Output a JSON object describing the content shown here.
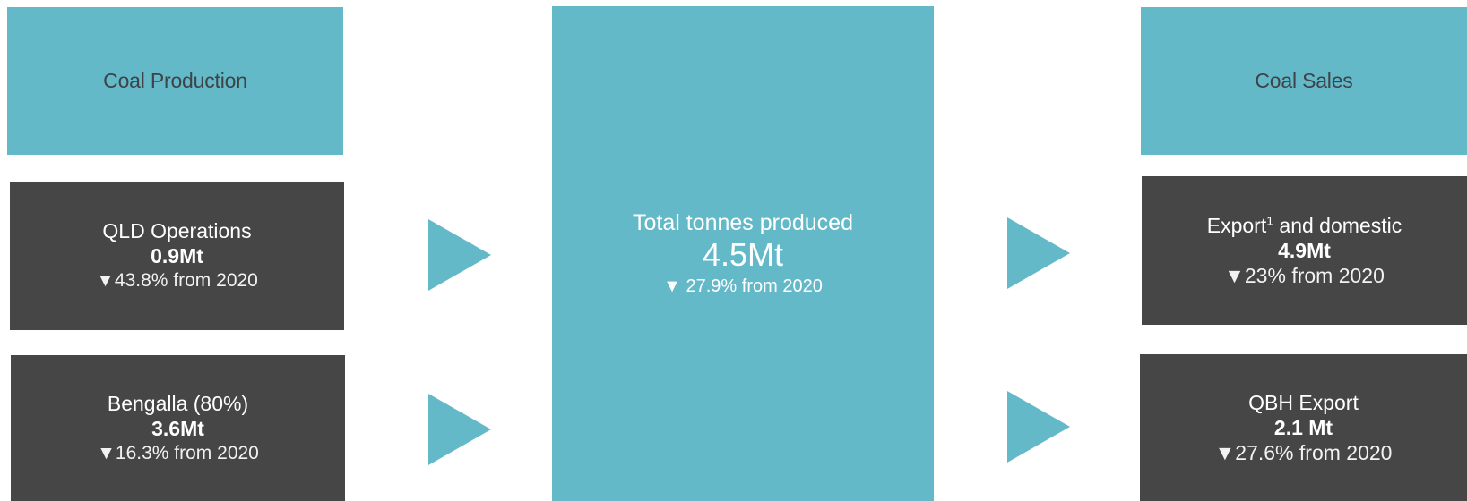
{
  "production": {
    "header": "Coal Production",
    "items": [
      {
        "name": "QLD Operations",
        "value": "0.9Mt",
        "change": "▼43.8% from 2020"
      },
      {
        "name": "Bengalla (80%)",
        "value": "3.6Mt",
        "change": "▼16.3% from 2020"
      }
    ]
  },
  "total": {
    "title": "Total tonnes produced",
    "value": "4.5Mt",
    "change": "▼ 27.9% from 2020"
  },
  "sales": {
    "header": "Coal Sales",
    "items": [
      {
        "name_main": "Export",
        "name_sup": "1",
        "name_rest": " and domestic",
        "value": "4.9Mt",
        "change": "▼23% from 2020"
      },
      {
        "name": "QBH Export",
        "value": "2.1 Mt",
        "change": "▼27.6% from 2020"
      }
    ]
  },
  "colors": {
    "teal": "#64b9c9",
    "dark": "#464646",
    "header_text": "#3d4347"
  }
}
